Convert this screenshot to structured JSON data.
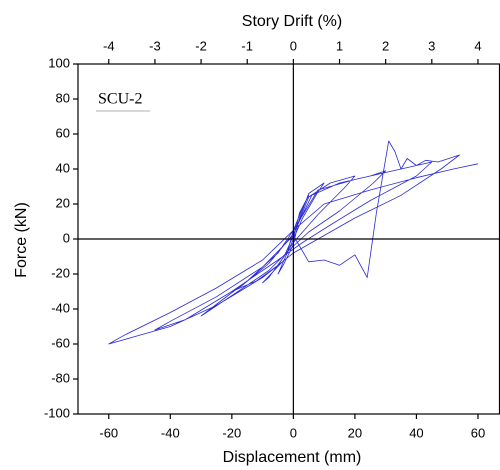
{
  "chart_data": {
    "type": "line",
    "x_label": "Displacement (mm)",
    "y_label": "Force (kN)",
    "x2_label": "Story Drift (%)",
    "annotation": "SCU-2",
    "xlim": [
      -70,
      67
    ],
    "xticks": [
      -60,
      -40,
      -20,
      0,
      20,
      40,
      60
    ],
    "x2lim": [
      -4.667,
      4.467
    ],
    "x2ticks": [
      -4,
      -3,
      -2,
      -1,
      0,
      1,
      2,
      3,
      4
    ],
    "ylim": [
      -100,
      100
    ],
    "yticks": [
      -100,
      -80,
      -60,
      -40,
      -20,
      0,
      20,
      40,
      60,
      80,
      100
    ],
    "x": [
      0,
      2,
      5,
      3,
      0,
      -2,
      -5,
      -3,
      0,
      2,
      5,
      10,
      8,
      3,
      0,
      -3,
      -10,
      -8,
      -3,
      0,
      5,
      12,
      20,
      17,
      8,
      0,
      -5,
      -12,
      -20,
      -17,
      -8,
      0,
      6,
      15,
      25,
      30,
      26,
      15,
      5,
      0,
      -8,
      -18,
      -30,
      -27,
      -15,
      -5,
      0,
      8,
      20,
      30,
      40,
      45,
      40,
      25,
      12,
      3,
      -5,
      -20,
      -35,
      -45,
      -40,
      -25,
      -10,
      0,
      5,
      10,
      15,
      20,
      24,
      27,
      31,
      33,
      35,
      37,
      40,
      43,
      47,
      54,
      48,
      35,
      20,
      8,
      0,
      -10,
      -25,
      -40,
      -50,
      -60,
      -55,
      -40,
      -25,
      -10,
      0,
      10,
      25,
      40,
      52,
      60
    ],
    "series": [
      {
        "color": "#2a2ad8",
        "values": [
          0,
          15,
          25,
          18,
          5,
          -8,
          -20,
          -14,
          -3,
          12,
          26,
          32,
          27,
          12,
          0,
          -12,
          -25,
          -22,
          -10,
          2,
          24,
          32,
          36,
          30,
          14,
          -2,
          -15,
          -24,
          -30,
          -27,
          -14,
          3,
          25,
          32,
          36,
          39,
          32,
          16,
          4,
          -4,
          -18,
          -30,
          -44,
          -40,
          -24,
          -8,
          5,
          28,
          34,
          38,
          42,
          44,
          36,
          22,
          8,
          -2,
          -12,
          -30,
          -46,
          -52,
          -47,
          -33,
          -16,
          2,
          -13,
          -12,
          -15,
          -9,
          -22,
          15,
          56,
          50,
          40,
          46,
          42,
          45,
          44,
          48,
          40,
          25,
          12,
          0,
          -8,
          -22,
          -38,
          -50,
          -55,
          -60,
          -55,
          -42,
          -28,
          -12,
          5,
          20,
          28,
          35,
          40,
          43
        ]
      }
    ]
  }
}
